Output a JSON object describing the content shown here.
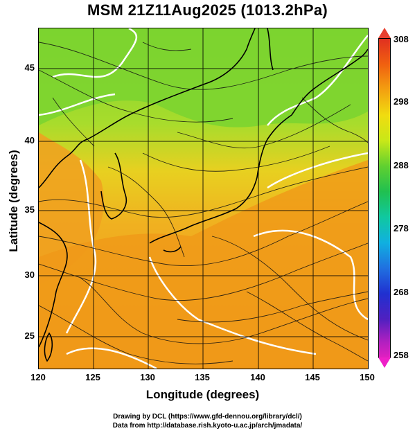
{
  "title": "MSM 21Z11Aug2025 (1013.2hPa)",
  "xlabel": "Longitude (degrees)",
  "ylabel": "Latitude  (degrees)",
  "x_ticks": [
    "120",
    "125",
    "130",
    "135",
    "140",
    "145",
    "150"
  ],
  "y_ticks": [
    "45",
    "40",
    "35",
    "30",
    "25"
  ],
  "colorbar": {
    "ticks": [
      "308",
      "298",
      "288",
      "278",
      "268",
      "258"
    ],
    "top_color": "#e84030",
    "bottom_color": "#ee20c8"
  },
  "credits": {
    "line1": "Drawing by DCL (https://www.gfd-dennou.org/library/dcl/)",
    "line2": "Data from http://database.rish.kyoto-u.ac.jp/arch/jmadata/"
  },
  "map": {
    "lon_range": [
      120,
      150
    ],
    "lat_range": [
      22.4,
      47.6
    ],
    "field": "temperature (K) with streamlines",
    "colors": {
      "warm": "#f0a020",
      "mild": "#e8d020",
      "cool": "#78d030",
      "contour": "#ffffff",
      "land": "#000000"
    }
  }
}
